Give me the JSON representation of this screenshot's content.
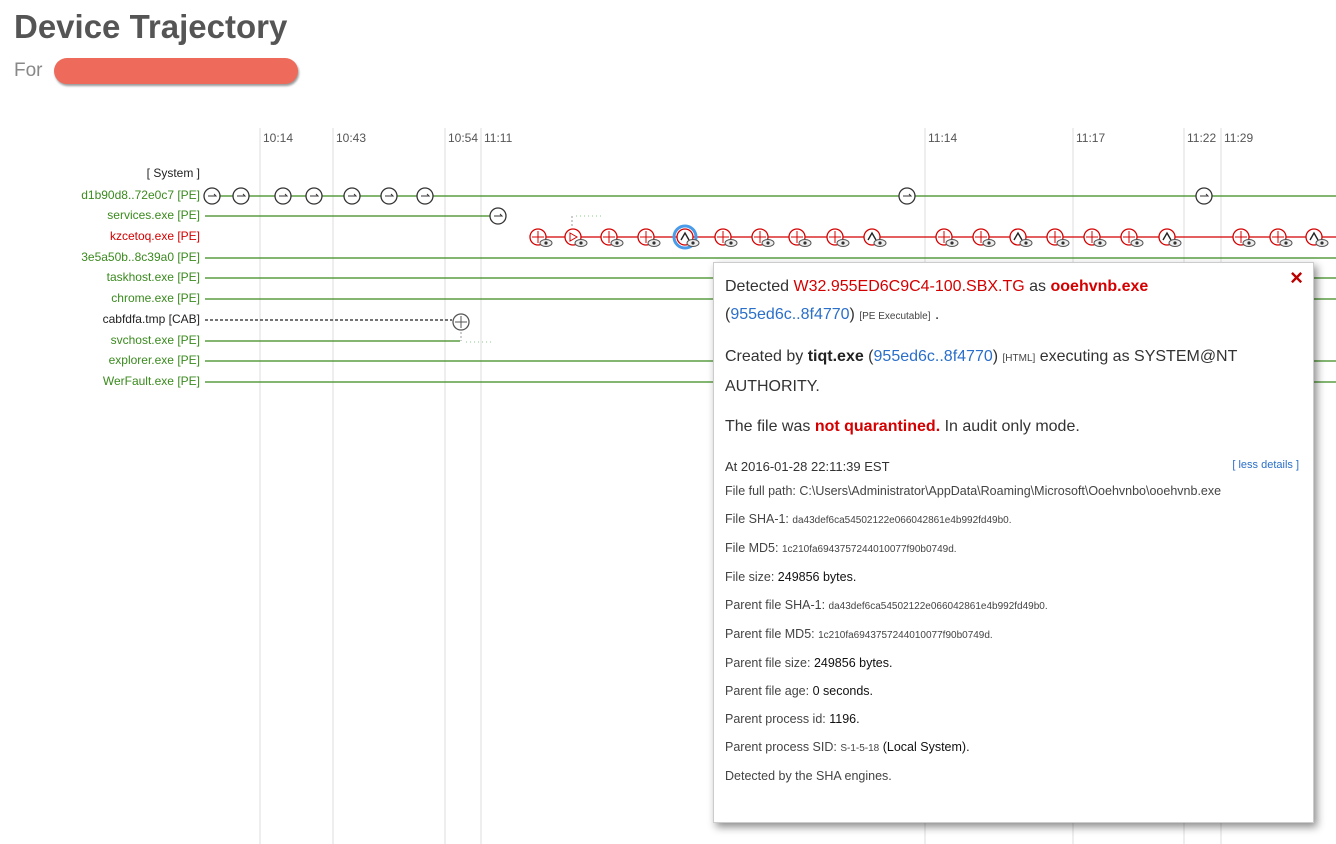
{
  "header": {
    "title": "Device Trajectory",
    "for_label": "For"
  },
  "timeline": {
    "times": [
      "10:14",
      "10:43",
      "10:54",
      "11:11",
      "11:14",
      "11:17",
      "11:22",
      "11:29"
    ],
    "rows": [
      {
        "label": "[ System ]",
        "color": "#222222"
      },
      {
        "label": "d1b90d8..72e0c7 [PE]",
        "color": "#3a8a1e"
      },
      {
        "label": "services.exe [PE]",
        "color": "#3a8a1e"
      },
      {
        "label": "kzcetoq.exe [PE]",
        "color": "#d40000"
      },
      {
        "label": "3e5a50b..8c39a0 [PE]",
        "color": "#3a8a1e"
      },
      {
        "label": "taskhost.exe [PE]",
        "color": "#3a8a1e"
      },
      {
        "label": "chrome.exe [PE]",
        "color": "#3a8a1e"
      },
      {
        "label": "cabfdfa.tmp [CAB]",
        "color": "#222222"
      },
      {
        "label": "svchost.exe [PE]",
        "color": "#3a8a1e"
      },
      {
        "label": "explorer.exe [PE]",
        "color": "#3a8a1e"
      },
      {
        "label": "WerFault.exe [PE]",
        "color": "#3a8a1e"
      }
    ]
  },
  "popup": {
    "close": "×",
    "summary": [
      [
        {
          "text": "Detected "
        },
        {
          "text": "W32.955ED6C9C4-100.SBX.TG",
          "style": "red"
        },
        {
          "text": " as "
        },
        {
          "text": "ooehvnb.exe",
          "style": "bold-red"
        }
      ],
      [
        {
          "text": "("
        },
        {
          "text": "955ed6c..8f4770",
          "style": "link"
        },
        {
          "text": ") "
        },
        {
          "text": "[PE Executable]",
          "style": "small"
        },
        {
          "text": " ."
        }
      ],
      [
        {
          "text": "Created by "
        },
        {
          "text": "tiqt.exe",
          "style": "bold"
        },
        {
          "text": " ("
        },
        {
          "text": "955ed6c..8f4770",
          "style": "link"
        },
        {
          "text": ") "
        },
        {
          "text": "[HTML]",
          "style": "small"
        },
        {
          "text": " executing as SYSTEM@NT AUTHORITY."
        }
      ],
      [
        {
          "text": "The file was "
        },
        {
          "text": "not quarantined.",
          "style": "bold-red"
        },
        {
          "text": " In audit only mode."
        }
      ]
    ],
    "timestamp": "At 2016-01-28  22:11:39  EST",
    "less_details": "[ less details ]",
    "details": [
      [
        {
          "text": "File full path: "
        },
        {
          "text": "C:\\Users\\Administrator\\AppData\\Roaming\\Microsoft\\Ooehvnbo\\ooehvnb.exe"
        }
      ],
      [
        {
          "text": "File SHA-1: "
        },
        {
          "text": "da43def6ca54502122e066042861e4b992fd49b0.",
          "style": "small"
        }
      ],
      [
        {
          "text": "File MD5: "
        },
        {
          "text": "1c210fa6943757244010077f90b0749d.",
          "style": "small"
        }
      ],
      [
        {
          "text": "File size: "
        },
        {
          "text": "249856 bytes.",
          "style": "dark"
        }
      ],
      [
        {
          "text": "Parent file SHA-1: "
        },
        {
          "text": "da43def6ca54502122e066042861e4b992fd49b0.",
          "style": "small"
        }
      ],
      [
        {
          "text": "Parent file MD5: "
        },
        {
          "text": "1c210fa6943757244010077f90b0749d.",
          "style": "small"
        }
      ],
      [
        {
          "text": "Parent file size: "
        },
        {
          "text": "249856 bytes.",
          "style": "dark"
        }
      ],
      [
        {
          "text": "Parent file age: "
        },
        {
          "text": "0 seconds.",
          "style": "dark"
        }
      ],
      [
        {
          "text": "Parent process id: "
        },
        {
          "text": "1196.",
          "style": "dark"
        }
      ],
      [
        {
          "text": "Parent process SID: "
        },
        {
          "text": "S-1-5-18",
          "style": "small"
        },
        {
          "text": " (Local System).",
          "style": "dark"
        }
      ],
      [
        {
          "text": "Detected by the SHA engines."
        }
      ]
    ]
  }
}
